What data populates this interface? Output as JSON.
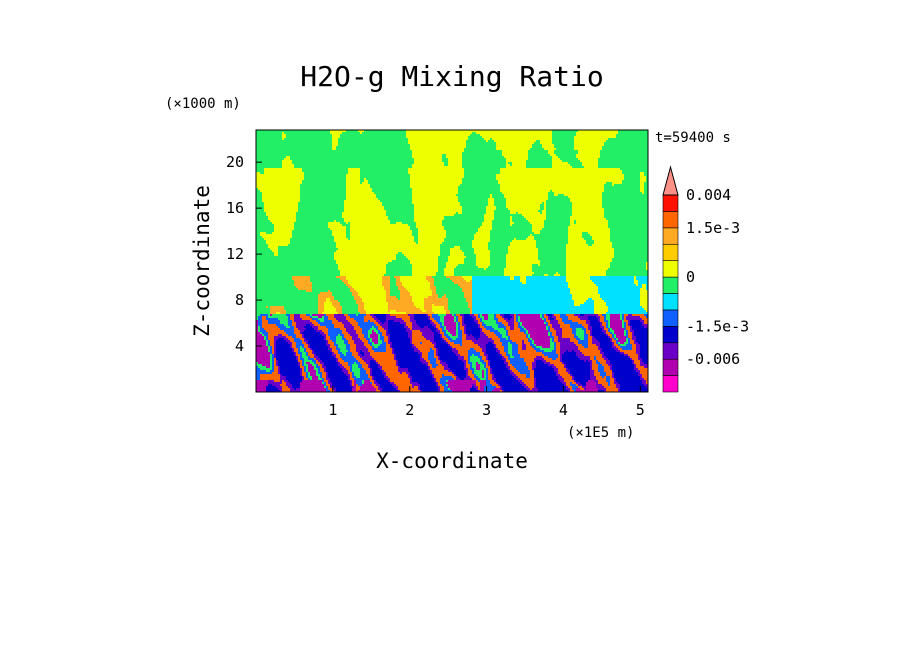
{
  "chart_data": {
    "type": "heatmap",
    "title": "H2O-g Mixing Ratio",
    "xlabel": "X-coordinate",
    "ylabel": "Z-coordinate",
    "x_unit": "(×1E5 m)",
    "y_unit": "(×1000 m)",
    "time_label": "t=59400 s",
    "xlim": [
      0,
      5.1
    ],
    "ylim": [
      0,
      22.8
    ],
    "x_ticks": [
      1,
      2,
      3,
      4,
      5
    ],
    "y_ticks": [
      4,
      8,
      12,
      16,
      20
    ],
    "colorbar": {
      "levels": [
        {
          "color": "#ff00cc",
          "value": -0.009
        },
        {
          "color": "#b000b0",
          "value": -0.006
        },
        {
          "color": "#6a00c8",
          "value": -0.003
        },
        {
          "color": "#0000cc",
          "value": -0.0015
        },
        {
          "color": "#1060ff",
          "value": -0.0008
        },
        {
          "color": "#00e0ff",
          "value": -0.0003
        },
        {
          "color": "#22ee66",
          "value": 0
        },
        {
          "color": "#eeff00",
          "value": 0.0005
        },
        {
          "color": "#ffcc00",
          "value": 0.001
        },
        {
          "color": "#ffaa22",
          "value": 0.0015
        },
        {
          "color": "#ff6600",
          "value": 0.002
        },
        {
          "color": "#ff1100",
          "value": 0.003
        },
        {
          "color": "#ff9088",
          "value": 0.004
        }
      ],
      "labels": [
        {
          "text": "0.004",
          "value": 0.004
        },
        {
          "text": "1.5e-3",
          "value": 0.0015
        },
        {
          "text": "0",
          "value": 0
        },
        {
          "text": "-1.5e-3",
          "value": -0.0015
        },
        {
          "text": "-0.006",
          "value": -0.006
        }
      ]
    },
    "field_description": {
      "top_band_value": 0,
      "upper_value": 0.0005,
      "mid_value": -0.0003,
      "lower_min_value": -0.009,
      "lower_max_value": 0.003
    }
  }
}
